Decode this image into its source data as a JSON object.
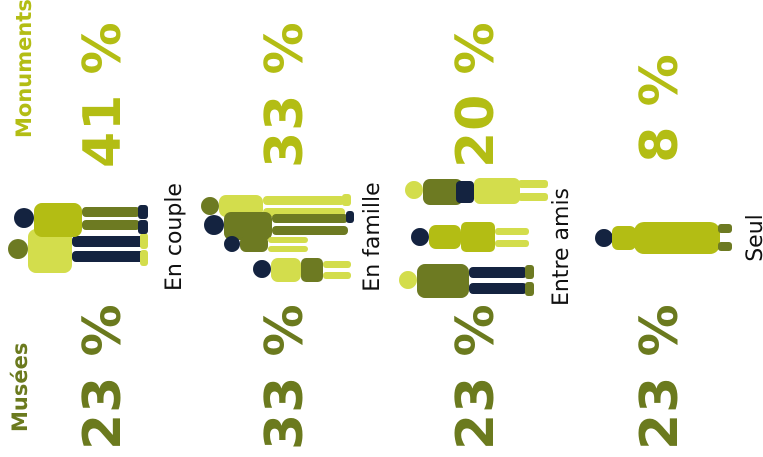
{
  "colors": {
    "museums": "#6b7a1e",
    "monuments": "#b3bd14",
    "light": "#d3dd4c",
    "olive": "#6d7a22",
    "navy": "#142340",
    "label": "#111111"
  },
  "chart_data": {
    "type": "table",
    "orientation": "rotated-90-counterclockwise",
    "columns": [
      "Musées",
      "Monuments"
    ],
    "rows": [
      {
        "label": "En couple",
        "museums": "23 %",
        "monuments": "41 %",
        "museums_value": 23,
        "monuments_value": 41
      },
      {
        "label": "En famille",
        "museums": "33 %",
        "monuments": "33 %",
        "museums_value": 33,
        "monuments_value": 33
      },
      {
        "label": "Entre amis",
        "museums": "23 %",
        "monuments": "20 %",
        "museums_value": 23,
        "monuments_value": 20
      },
      {
        "label": "Seul",
        "museums": "23 %",
        "monuments": "8 %",
        "museums_value": 23,
        "monuments_value": 8
      }
    ],
    "unit": "%"
  }
}
